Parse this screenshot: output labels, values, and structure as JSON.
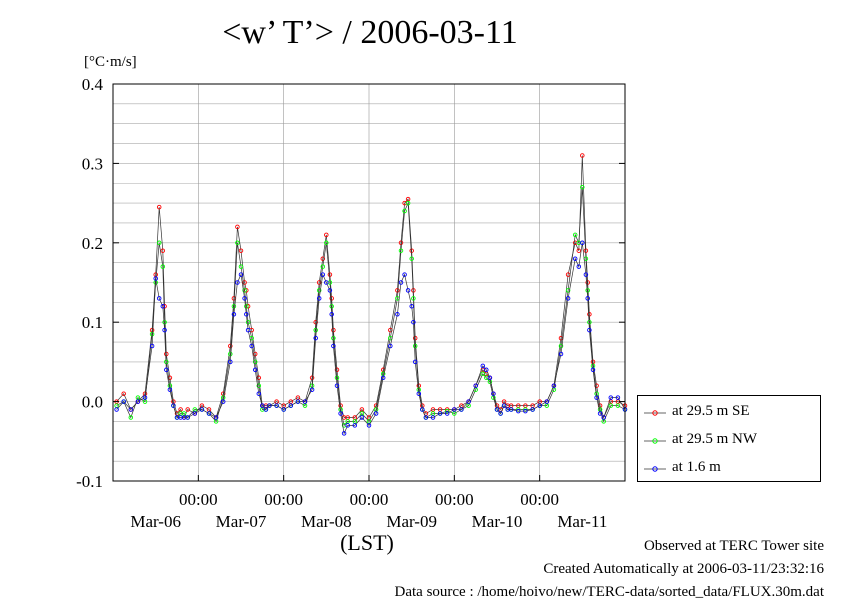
{
  "chart_data": {
    "type": "line",
    "title": "<w’ T’> / 2006-03-11",
    "ylabel": "[°C·m/s]",
    "xlabel": "(LST)",
    "ylim": [
      -0.1,
      0.4
    ],
    "yticks": [
      -0.1,
      0.0,
      0.1,
      0.2,
      0.3,
      0.4
    ],
    "ytick_labels": [
      "-0.1",
      "0.0",
      "0.1",
      "0.2",
      "0.3",
      "0.4"
    ],
    "xlim": [
      -24,
      120
    ],
    "xticks": [
      0,
      24,
      48,
      72,
      96
    ],
    "xtick_time_labels": [
      "00:00",
      "00:00",
      "00:00",
      "00:00",
      "00:00"
    ],
    "xtick_date_labels": [
      "Mar-06",
      "Mar-07",
      "Mar-08",
      "Mar-09",
      "Mar-10",
      "Mar-11"
    ],
    "x_units": "hours relative to 2006-03-07 00:00 LST",
    "grid": true,
    "legend_position": "bottom-right, outside plot",
    "series": [
      {
        "name": "at 29.5 m SE",
        "color": "#ff0000",
        "x": [
          -23,
          -21,
          -19,
          -17,
          -15,
          -13,
          -12,
          -11,
          -10,
          -9.5,
          -9,
          -8,
          -7,
          -6,
          -5,
          -4,
          -3,
          -1,
          1,
          3,
          5,
          7,
          9,
          10,
          11,
          12,
          13,
          13.5,
          14,
          15,
          16,
          17,
          18,
          19,
          20,
          22,
          24,
          26,
          28,
          30,
          32,
          33,
          34,
          35,
          36,
          37,
          37.5,
          38,
          39,
          40,
          41,
          42,
          44,
          46,
          48,
          50,
          52,
          54,
          56,
          57,
          58,
          59,
          60,
          60.5,
          61,
          62,
          63,
          64,
          66,
          68,
          70,
          72,
          74,
          76,
          78,
          80,
          81,
          82,
          83,
          84,
          85,
          86,
          87,
          88,
          90,
          92,
          94,
          96,
          98,
          100,
          102,
          104,
          106,
          107,
          108,
          109,
          109.5,
          110,
          111,
          112,
          113,
          114,
          116,
          118,
          120
        ],
        "y": [
          0.0,
          0.01,
          -0.01,
          0.0,
          0.01,
          0.09,
          0.16,
          0.245,
          0.19,
          0.12,
          0.06,
          0.03,
          0.0,
          -0.015,
          -0.01,
          -0.02,
          -0.01,
          -0.015,
          -0.005,
          -0.01,
          -0.02,
          0.01,
          0.07,
          0.13,
          0.22,
          0.19,
          0.15,
          0.14,
          0.12,
          0.09,
          0.06,
          0.03,
          -0.005,
          -0.005,
          -0.005,
          0.0,
          -0.005,
          0.0,
          0.005,
          0.0,
          0.03,
          0.1,
          0.15,
          0.18,
          0.21,
          0.16,
          0.13,
          0.09,
          0.04,
          -0.005,
          -0.02,
          -0.02,
          -0.02,
          -0.01,
          -0.02,
          -0.005,
          0.04,
          0.09,
          0.14,
          0.2,
          0.25,
          0.255,
          0.19,
          0.14,
          0.08,
          0.02,
          -0.005,
          -0.015,
          -0.01,
          -0.01,
          -0.01,
          -0.01,
          -0.005,
          0.0,
          0.02,
          0.04,
          0.035,
          0.03,
          0.01,
          -0.005,
          -0.01,
          0.0,
          -0.005,
          -0.005,
          -0.005,
          -0.005,
          -0.005,
          0.0,
          0.0,
          0.02,
          0.08,
          0.16,
          0.2,
          0.19,
          0.31,
          0.19,
          0.15,
          0.11,
          0.05,
          0.02,
          -0.005,
          -0.02,
          0.0,
          0.0,
          -0.005
        ]
      },
      {
        "name": "at 29.5 m NW",
        "color": "#00ff00",
        "x": [
          -23,
          -21,
          -19,
          -17,
          -15,
          -13,
          -12,
          -11,
          -10,
          -9.5,
          -9,
          -8,
          -7,
          -6,
          -5,
          -4,
          -3,
          -1,
          1,
          3,
          5,
          7,
          9,
          10,
          11,
          12,
          13,
          13.5,
          14,
          15,
          16,
          17,
          18,
          19,
          20,
          22,
          24,
          26,
          28,
          30,
          32,
          33,
          34,
          35,
          36,
          37,
          37.5,
          38,
          39,
          40,
          41,
          42,
          44,
          46,
          48,
          50,
          52,
          54,
          56,
          57,
          58,
          59,
          60,
          60.5,
          61,
          62,
          63,
          64,
          66,
          68,
          70,
          72,
          74,
          76,
          78,
          80,
          81,
          82,
          83,
          84,
          85,
          86,
          87,
          88,
          90,
          92,
          94,
          96,
          98,
          100,
          102,
          104,
          106,
          107,
          108,
          109,
          109.5,
          110,
          111,
          112,
          113,
          114,
          116,
          118,
          120
        ],
        "y": [
          -0.005,
          0.0,
          -0.02,
          0.005,
          0.0,
          0.085,
          0.15,
          0.2,
          0.17,
          0.1,
          0.05,
          0.02,
          -0.005,
          -0.02,
          -0.015,
          -0.015,
          -0.02,
          -0.01,
          -0.01,
          -0.015,
          -0.025,
          0.005,
          0.06,
          0.12,
          0.2,
          0.17,
          0.14,
          0.12,
          0.1,
          0.08,
          0.05,
          0.02,
          -0.01,
          -0.01,
          -0.005,
          -0.005,
          -0.01,
          -0.005,
          0.0,
          -0.005,
          0.02,
          0.09,
          0.14,
          0.17,
          0.2,
          0.15,
          0.12,
          0.08,
          0.03,
          -0.01,
          -0.03,
          -0.025,
          -0.025,
          -0.015,
          -0.025,
          -0.01,
          0.035,
          0.08,
          0.13,
          0.19,
          0.24,
          0.25,
          0.18,
          0.13,
          0.07,
          0.015,
          -0.01,
          -0.02,
          -0.015,
          -0.015,
          -0.012,
          -0.015,
          -0.01,
          -0.005,
          0.015,
          0.035,
          0.03,
          0.025,
          0.005,
          -0.01,
          -0.015,
          -0.005,
          -0.01,
          -0.01,
          -0.01,
          -0.01,
          -0.01,
          -0.005,
          -0.005,
          0.015,
          0.07,
          0.14,
          0.21,
          0.2,
          0.27,
          0.18,
          0.14,
          0.1,
          0.045,
          0.01,
          -0.01,
          -0.025,
          -0.005,
          -0.005,
          -0.01
        ]
      },
      {
        "name": "at 1.6 m",
        "color": "#0000ff",
        "x": [
          -23,
          -21,
          -19,
          -17,
          -15,
          -13,
          -12,
          -11,
          -10,
          -9.5,
          -9,
          -8,
          -7,
          -6,
          -5,
          -4,
          -3,
          -1,
          1,
          3,
          5,
          7,
          9,
          10,
          11,
          12,
          13,
          13.5,
          14,
          15,
          16,
          17,
          18,
          19,
          20,
          22,
          24,
          26,
          28,
          30,
          32,
          33,
          34,
          35,
          36,
          37,
          37.5,
          38,
          39,
          40,
          41,
          42,
          44,
          46,
          48,
          50,
          52,
          54,
          56,
          57,
          58,
          59,
          60,
          60.5,
          61,
          62,
          63,
          64,
          66,
          68,
          70,
          72,
          74,
          76,
          78,
          80,
          81,
          82,
          83,
          84,
          85,
          86,
          87,
          88,
          90,
          92,
          94,
          96,
          98,
          100,
          102,
          104,
          106,
          107,
          108,
          109,
          109.5,
          110,
          111,
          112,
          113,
          114,
          116,
          118,
          120
        ],
        "y": [
          -0.01,
          0.0,
          -0.01,
          0.0,
          0.005,
          0.07,
          0.155,
          0.13,
          0.12,
          0.09,
          0.04,
          0.015,
          -0.005,
          -0.02,
          -0.02,
          -0.02,
          -0.02,
          -0.015,
          -0.01,
          -0.015,
          -0.02,
          0.0,
          0.05,
          0.11,
          0.15,
          0.16,
          0.13,
          0.11,
          0.09,
          0.07,
          0.04,
          0.01,
          -0.005,
          -0.01,
          -0.005,
          -0.005,
          -0.01,
          -0.005,
          0.0,
          0.0,
          0.015,
          0.08,
          0.13,
          0.16,
          0.15,
          0.14,
          0.11,
          0.07,
          0.02,
          -0.015,
          -0.04,
          -0.03,
          -0.03,
          -0.02,
          -0.03,
          -0.015,
          0.03,
          0.07,
          0.11,
          0.15,
          0.16,
          0.14,
          0.12,
          0.1,
          0.05,
          0.01,
          -0.01,
          -0.02,
          -0.02,
          -0.015,
          -0.015,
          -0.01,
          -0.01,
          0.0,
          0.02,
          0.045,
          0.04,
          0.03,
          0.01,
          -0.01,
          -0.015,
          -0.005,
          -0.01,
          -0.01,
          -0.012,
          -0.012,
          -0.01,
          -0.005,
          0.0,
          0.02,
          0.06,
          0.13,
          0.18,
          0.17,
          0.2,
          0.16,
          0.13,
          0.09,
          0.04,
          0.005,
          -0.015,
          -0.02,
          0.005,
          0.005,
          -0.01
        ]
      }
    ]
  },
  "footer": {
    "line1": "Observed at TERC Tower site",
    "line2": "Created Automatically at 2006-03-11/23:32:16",
    "line3": "Data source : /home/hoivo/new/TERC-data/sorted_data/FLUX.30m.dat"
  }
}
